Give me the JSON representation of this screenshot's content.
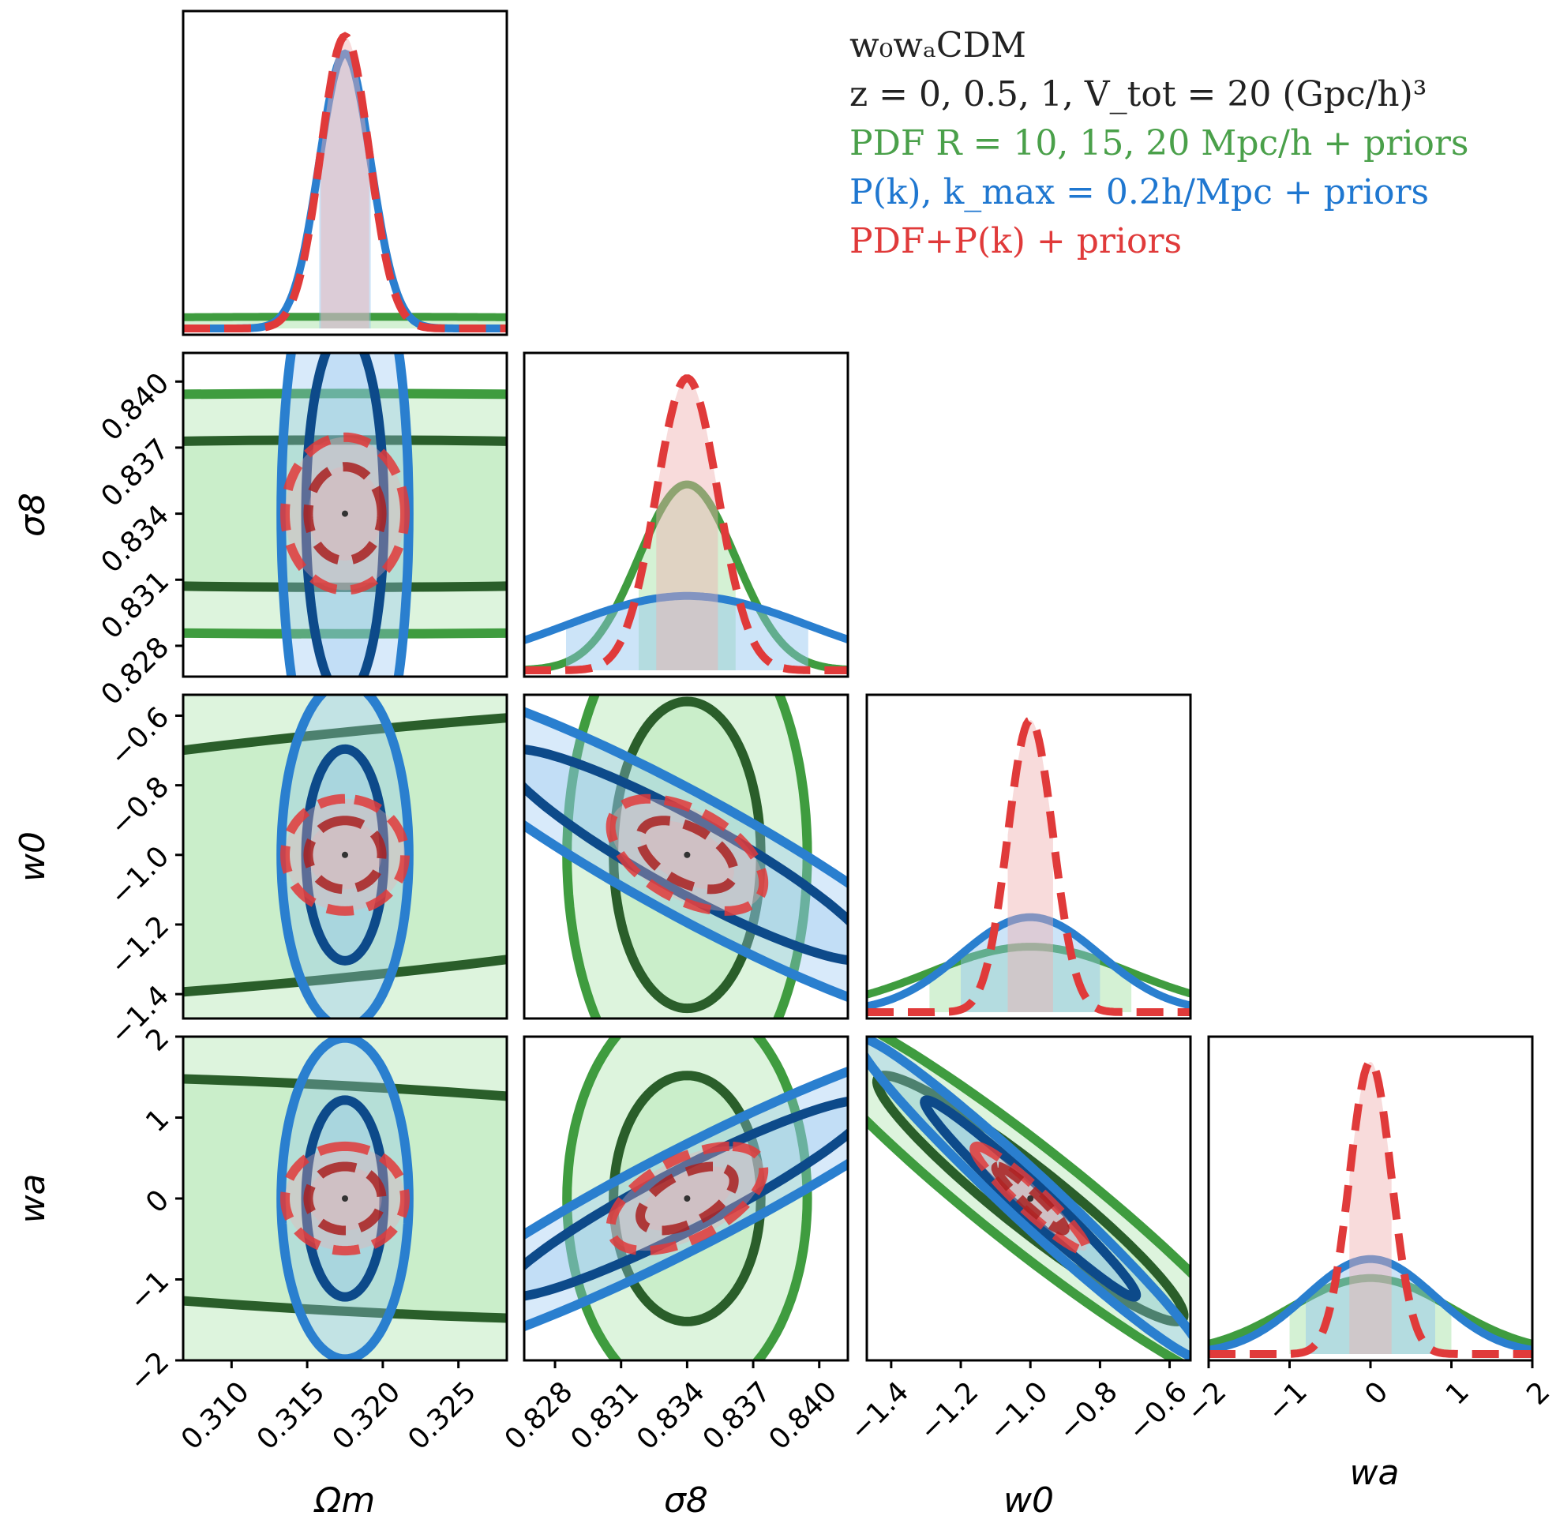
{
  "chart_data": {
    "type": "corner",
    "title": "w0waCDM",
    "legend": {
      "placement": "top-right",
      "title_line1": "w₀wₐCDM",
      "title_line2": "z = 0, 0.5, 1,  V_tot = 20 (Gpc/h)³",
      "entries": [
        {
          "label": "PDF R = 10, 15, 20 Mpc/h + priors",
          "color": "#4aa04a"
        },
        {
          "label": "P(k), k_max = 0.2h/Mpc + priors",
          "color": "#1f77d0"
        },
        {
          "label": "PDF+P(k) + priors",
          "color": "#e03a3a"
        }
      ]
    },
    "parameters": [
      {
        "name": "Omega_m",
        "label": "Ωm",
        "fiducial": 0.3175,
        "range": [
          0.3068,
          0.3282
        ],
        "ticks": [
          0.31,
          0.315,
          0.32,
          0.325
        ],
        "tick_labels": [
          "0.310",
          "0.315",
          "0.320",
          "0.325"
        ]
      },
      {
        "name": "sigma_8",
        "label": "σ8",
        "fiducial": 0.834,
        "range": [
          0.8266,
          0.8413
        ],
        "ticks": [
          0.828,
          0.831,
          0.834,
          0.837,
          0.84
        ],
        "tick_labels": [
          "0.828",
          "0.831",
          "0.834",
          "0.837",
          "0.840"
        ]
      },
      {
        "name": "w0",
        "label": "w0",
        "fiducial": -1.0,
        "range": [
          -1.47,
          -0.54
        ],
        "ticks": [
          -1.4,
          -1.2,
          -1.0,
          -0.8,
          -0.6
        ],
        "tick_labels": [
          "−1.4",
          "−1.2",
          "−1.0",
          "−0.8",
          "−0.6"
        ]
      },
      {
        "name": "wa",
        "label": "wa",
        "fiducial": 0.0,
        "range": [
          -2,
          2
        ],
        "ticks": [
          -2,
          -1,
          0,
          1,
          2
        ],
        "tick_labels": [
          "−2",
          "−1",
          "0",
          "1",
          "2"
        ]
      }
    ],
    "series": [
      {
        "name": "PDF R = 10, 15, 20 Mpc/h + priors",
        "color_line": "#3f9c3f",
        "color_inner": "#2a5e2a",
        "color_fill": "#9fe09f",
        "sigma": [
          0.04,
          0.0022,
          0.29,
          1.0
        ],
        "corr": [
          [
            1,
            0,
            0.6,
            -0.4
          ],
          [
            0,
            1,
            0,
            0
          ],
          [
            0.6,
            0,
            1,
            -0.95
          ],
          [
            -0.4,
            0,
            -0.95,
            1
          ]
        ],
        "dashed": false
      },
      {
        "name": "P(k), k_max = 0.2h/Mpc + priors",
        "color_line": "#2a7fcf",
        "color_inner": "#0d4a8a",
        "color_fill": "#8ec4f0",
        "sigma": [
          0.0017,
          0.0055,
          0.2,
          0.8
        ],
        "corr": [
          [
            1,
            0,
            0,
            0
          ],
          [
            0,
            1,
            -0.92,
            0.94
          ],
          [
            0,
            -0.92,
            1,
            -0.98
          ],
          [
            0,
            0.94,
            -0.98,
            1
          ]
        ],
        "dashed": false
      },
      {
        "name": "PDF+P(k) + priors",
        "color_line": "#e03a3a",
        "color_inner": "#a82020",
        "color_fill": "#f0b0b0",
        "sigma": [
          0.0016,
          0.0014,
          0.065,
          0.26
        ],
        "corr": [
          [
            1,
            0,
            0,
            0
          ],
          [
            0,
            1,
            -0.5,
            0.55
          ],
          [
            0,
            -0.5,
            1,
            -0.95
          ],
          [
            0,
            0.55,
            -0.95,
            1
          ]
        ],
        "dashed": true
      }
    ]
  }
}
